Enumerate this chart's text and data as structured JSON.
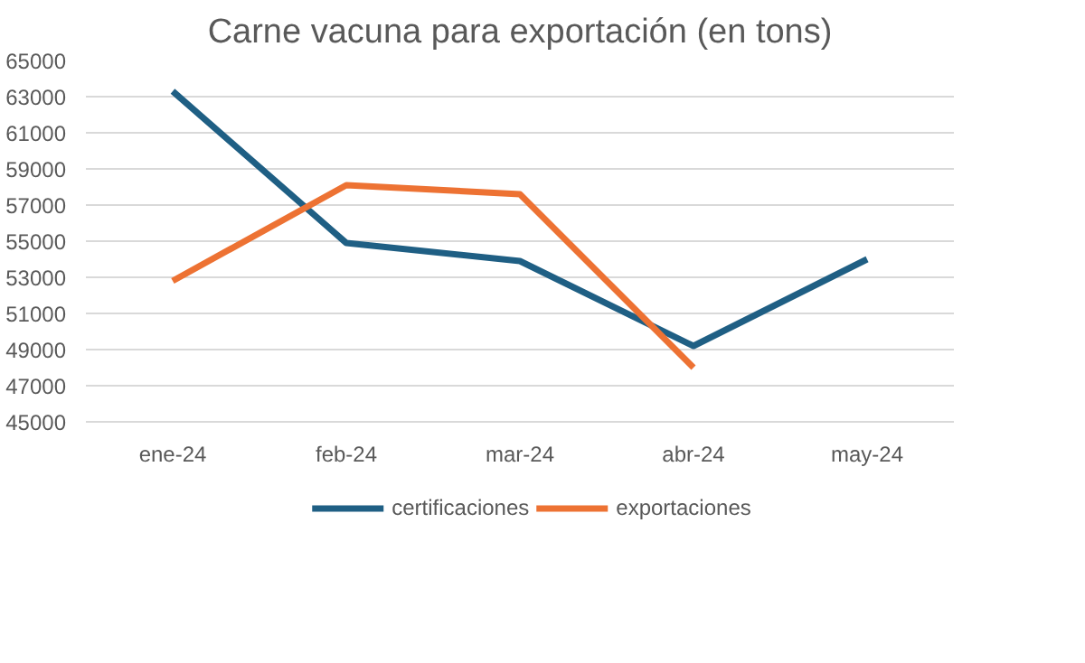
{
  "chart_data": {
    "type": "line",
    "title": "Carne vacuna para exportación (en tons)",
    "categories": [
      "ene-24",
      "feb-24",
      "mar-24",
      "abr-24",
      "may-24"
    ],
    "series": [
      {
        "name": "certificaciones",
        "color": "#1f5f84",
        "values": [
          63300,
          54900,
          53900,
          49200,
          54000
        ]
      },
      {
        "name": "exportaciones",
        "color": "#ed7233",
        "values": [
          52800,
          58100,
          57600,
          48000,
          null
        ]
      }
    ],
    "ylim": [
      45000,
      65000
    ],
    "yticks": [
      45000,
      47000,
      49000,
      51000,
      53000,
      55000,
      57000,
      59000,
      61000,
      63000,
      65000
    ],
    "grid": "y",
    "legend": "bottom",
    "marker": "none",
    "line_style": "solid"
  }
}
